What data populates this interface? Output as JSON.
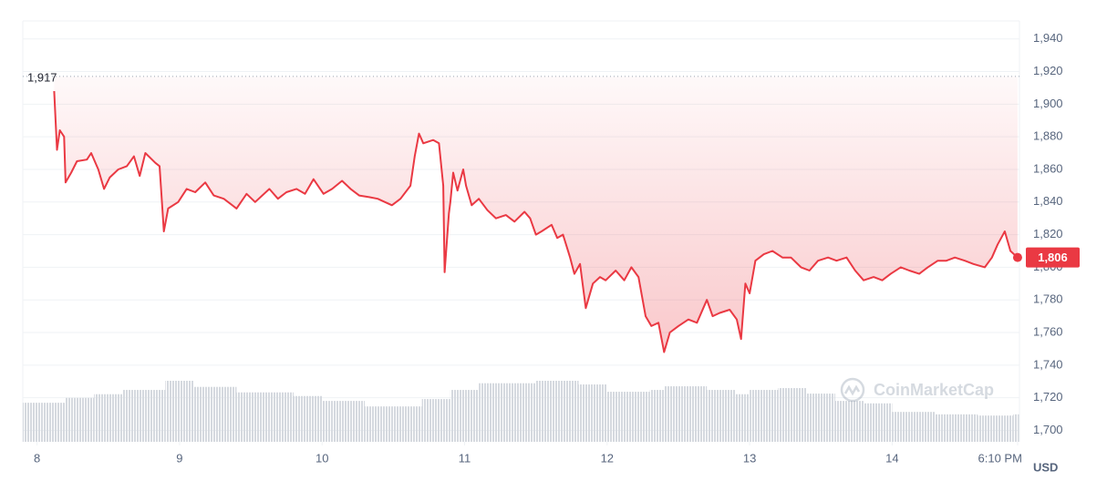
{
  "chart_data": {
    "type": "line",
    "x": [
      8.12,
      8.14,
      8.16,
      8.19,
      8.2,
      8.24,
      8.28,
      8.35,
      8.38,
      8.43,
      8.47,
      8.51,
      8.57,
      8.63,
      8.68,
      8.72,
      8.76,
      8.83,
      8.86,
      8.89,
      8.92,
      8.99,
      9.05,
      9.11,
      9.18,
      9.24,
      9.31,
      9.4,
      9.47,
      9.53,
      9.63,
      9.69,
      9.75,
      9.82,
      9.88,
      9.94,
      10.01,
      10.07,
      10.14,
      10.2,
      10.26,
      10.33,
      10.39,
      10.49,
      10.55,
      10.62,
      10.65,
      10.68,
      10.71,
      10.78,
      10.82,
      10.85,
      10.86,
      10.89,
      10.9,
      10.92,
      10.95,
      10.99,
      11.01,
      11.05,
      11.1,
      11.16,
      11.22,
      11.29,
      11.35,
      11.42,
      11.46,
      11.5,
      11.54,
      11.61,
      11.65,
      11.69,
      11.74,
      11.77,
      11.81,
      11.85,
      11.9,
      11.95,
      11.99,
      12.06,
      12.12,
      12.17,
      12.22,
      12.27,
      12.31,
      12.36,
      12.4,
      12.44,
      12.5,
      12.57,
      12.63,
      12.7,
      12.74,
      12.79,
      12.86,
      12.91,
      12.94,
      12.97,
      13.0,
      13.04,
      13.1,
      13.16,
      13.23,
      13.29,
      13.36,
      13.42,
      13.48,
      13.55,
      13.61,
      13.68,
      13.74,
      13.8,
      13.87,
      13.93,
      13.99,
      14.06,
      14.12,
      14.19,
      14.25,
      14.32,
      14.38,
      14.44,
      14.51,
      14.57,
      14.65,
      14.7,
      14.74,
      14.79,
      14.83,
      14.88
    ],
    "series": [
      {
        "name": "Price",
        "color": "#ea3943",
        "values": [
          1908,
          1872,
          1884,
          1880,
          1852,
          1858,
          1865,
          1866,
          1870,
          1860,
          1848,
          1855,
          1860,
          1862,
          1868,
          1856,
          1870,
          1864,
          1862,
          1822,
          1836,
          1840,
          1848,
          1846,
          1852,
          1844,
          1842,
          1836,
          1845,
          1840,
          1848,
          1842,
          1846,
          1848,
          1845,
          1854,
          1845,
          1848,
          1853,
          1848,
          1844,
          1843,
          1842,
          1838,
          1842,
          1850,
          1868,
          1882,
          1876,
          1878,
          1876,
          1850,
          1797,
          1833,
          1840,
          1858,
          1847,
          1860,
          1850,
          1838,
          1842,
          1835,
          1830,
          1832,
          1828,
          1834,
          1830,
          1820,
          1822,
          1826,
          1818,
          1820,
          1806,
          1796,
          1802,
          1775,
          1790,
          1794,
          1792,
          1798,
          1792,
          1800,
          1794,
          1770,
          1764,
          1766,
          1748,
          1760,
          1764,
          1768,
          1766,
          1780,
          1770,
          1772,
          1774,
          1768,
          1756,
          1790,
          1784,
          1804,
          1808,
          1810,
          1806,
          1806,
          1800,
          1798,
          1804,
          1806,
          1804,
          1806,
          1798,
          1792,
          1794,
          1792,
          1796,
          1800,
          1798,
          1796,
          1800,
          1804,
          1804,
          1806,
          1804,
          1802,
          1800,
          1806,
          1814,
          1822,
          1810,
          1806
        ]
      }
    ],
    "volume": {
      "color": "#d5d9df",
      "x": [
        7.9,
        8.2,
        8.4,
        8.6,
        8.9,
        9.1,
        9.4,
        9.8,
        10.0,
        10.3,
        10.6,
        10.7,
        10.9,
        11.1,
        11.5,
        11.8,
        12.0,
        12.3,
        12.4,
        12.7,
        12.9,
        13.0,
        13.2,
        13.4,
        13.6,
        13.8,
        14.0,
        14.3,
        14.6,
        14.85
      ],
      "values": [
        64,
        72,
        78,
        85,
        100,
        90,
        81,
        75,
        67,
        58,
        58,
        70,
        85,
        96,
        100,
        94,
        82,
        85,
        91,
        85,
        78,
        85,
        88,
        79,
        67,
        63,
        49,
        45,
        43,
        45
      ]
    },
    "xlim": [
      7.9,
      14.89
    ],
    "xticks": [
      8,
      9,
      10,
      11,
      12,
      13,
      14,
      {
        "value": 14.88,
        "label": "6:10 PM"
      }
    ],
    "ylim": [
      1693,
      1951
    ],
    "yticks": [
      {
        "value": 1700,
        "label": "1,700"
      },
      {
        "value": 1720,
        "label": "1,720"
      },
      {
        "value": 1740,
        "label": "1,740"
      },
      {
        "value": 1760,
        "label": "1,760"
      },
      {
        "value": 1780,
        "label": "1,780"
      },
      {
        "value": 1800,
        "label": "1,800"
      },
      {
        "value": 1820,
        "label": "1,820"
      },
      {
        "value": 1840,
        "label": "1,840"
      },
      {
        "value": 1860,
        "label": "1,860"
      },
      {
        "value": 1880,
        "label": "1,880"
      },
      {
        "value": 1900,
        "label": "1,900"
      },
      {
        "value": 1920,
        "label": "1,920"
      },
      {
        "value": 1940,
        "label": "1,940"
      }
    ],
    "grid": true,
    "baseline": {
      "value": 1917,
      "label": "1,917"
    },
    "price_tag": {
      "value": 1806,
      "label": "1,806"
    },
    "y_unit": "USD",
    "watermark": "CoinMarketCap"
  }
}
